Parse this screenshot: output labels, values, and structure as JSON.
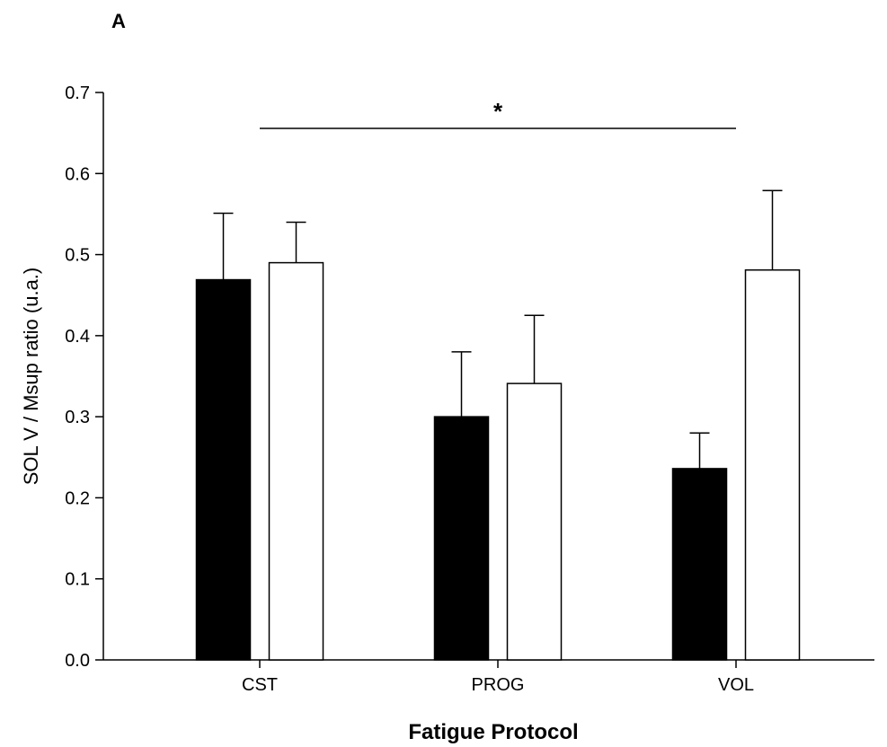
{
  "panel_label": "A",
  "chart_data": {
    "type": "bar",
    "categories": [
      "CST",
      "PROG",
      "VOL"
    ],
    "series": [
      {
        "values": [
          0.469,
          0.3,
          0.236
        ],
        "errors": [
          0.082,
          0.08,
          0.044
        ],
        "color": "#000000"
      },
      {
        "values": [
          0.49,
          0.341,
          0.481
        ],
        "errors": [
          0.05,
          0.084,
          0.098
        ],
        "color": "#ffffff"
      }
    ],
    "xlabel": "Fatigue Protocol",
    "ylabel": "SOL V / Msup ratio (u.a.)",
    "ylim": [
      0,
      0.7
    ],
    "yticks": [
      0.0,
      0.1,
      0.2,
      0.3,
      0.4,
      0.5,
      0.6,
      0.7
    ],
    "ytick_labels": [
      "0.0",
      "0.1",
      "0.2",
      "0.3",
      "0.4",
      "0.5",
      "0.6",
      "0.7"
    ],
    "grid": false,
    "significance": {
      "label": "*",
      "from_category": "CST",
      "to_category": "VOL"
    }
  }
}
